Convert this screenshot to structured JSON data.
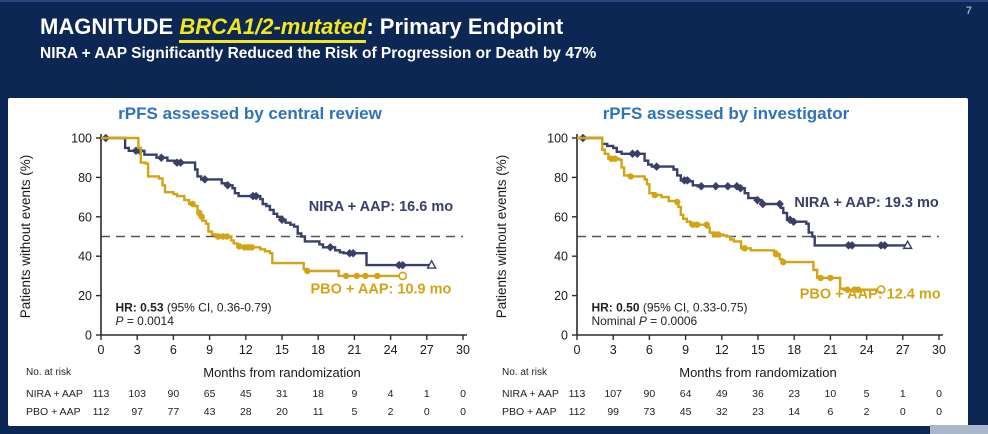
{
  "page_number": "7",
  "header": {
    "title_prefix": "MAGNITUDE ",
    "title_highlight": "BRCA1/2-mutated",
    "title_suffix": ": Primary Endpoint",
    "subtitle": "NIRA + AAP Significantly Reduced the Risk of Progression or Death by 47%"
  },
  "colors": {
    "slide_bg": "#0C2754",
    "highlight_yellow": "#F2E71E",
    "plot_title_blue": "#2E74B5",
    "nira_navy": "#383F68",
    "pbo_gold": "#D2A414",
    "axis": "#2B2B2B",
    "dashed_reference": "#555555"
  },
  "chart_data": [
    {
      "type": "line",
      "variant": "kaplan-meier-step",
      "id": "central-review",
      "title": "rPFS assessed by central review",
      "xlabel": "Months from randomization",
      "ylabel": "Patients without events (%)",
      "xlim": [
        0,
        30
      ],
      "xtick_step": 3,
      "ylim": [
        0,
        100
      ],
      "yticks": [
        0,
        20,
        40,
        60,
        80,
        100
      ],
      "grid": false,
      "reference_line_y": 50,
      "series": [
        {
          "name": "NIRA + AAP",
          "color": "#383F68",
          "median_months": 16.6,
          "annotation": {
            "text": "NIRA + AAP: 16.6 mo",
            "x_mo": 23.2,
            "y_pct": 63
          },
          "censor_marker": "diamond",
          "end_marker": "triangle-open",
          "steps": [
            [
              0,
              100
            ],
            [
              1.8,
              100
            ],
            [
              2.0,
              95
            ],
            [
              2.3,
              93.5
            ],
            [
              3.4,
              93.5
            ],
            [
              3.6,
              91.5
            ],
            [
              4.4,
              91.5
            ],
            [
              4.6,
              90
            ],
            [
              5.3,
              90
            ],
            [
              5.5,
              88.5
            ],
            [
              6.1,
              87.5
            ],
            [
              7.6,
              87.5
            ],
            [
              7.8,
              84
            ],
            [
              8.0,
              80.5
            ],
            [
              8.3,
              79
            ],
            [
              9.8,
              79
            ],
            [
              10.0,
              77
            ],
            [
              10.4,
              76
            ],
            [
              10.9,
              74.5
            ],
            [
              11.1,
              72
            ],
            [
              11.4,
              70.5
            ],
            [
              12.9,
              70.5
            ],
            [
              13.2,
              69
            ],
            [
              13.4,
              66.5
            ],
            [
              13.7,
              65.5
            ],
            [
              14.0,
              63.5
            ],
            [
              14.3,
              61.5
            ],
            [
              14.6,
              60
            ],
            [
              15.0,
              58.5
            ],
            [
              15.3,
              57
            ],
            [
              15.7,
              56
            ],
            [
              16.0,
              55
            ],
            [
              16.3,
              51.5
            ],
            [
              16.6,
              50
            ],
            [
              16.9,
              47.5
            ],
            [
              17.8,
              47.5
            ],
            [
              18.1,
              46
            ],
            [
              18.4,
              44.5
            ],
            [
              19.4,
              43
            ],
            [
              19.8,
              42
            ],
            [
              20.1,
              41.5
            ],
            [
              21.8,
              41.5
            ],
            [
              22.0,
              35.5
            ],
            [
              27.4,
              35.5
            ]
          ],
          "censors_x": [
            0.4,
            2.9,
            3.2,
            5.0,
            6.3,
            6.6,
            8.6,
            10.5,
            12.6,
            12.85,
            15.0,
            19.0,
            20.6,
            20.9,
            24.7,
            25.0
          ]
        },
        {
          "name": "PBO + AAP",
          "color": "#D2A414",
          "median_months": 10.9,
          "annotation": {
            "text": "PBO + AAP: 10.9 mo",
            "x_mo": 23.2,
            "y_pct": 21
          },
          "censor_marker": "circle",
          "end_marker": "circle-open",
          "steps": [
            [
              0,
              100
            ],
            [
              2.9,
              100
            ],
            [
              3.1,
              95
            ],
            [
              3.3,
              87.5
            ],
            [
              3.7,
              87
            ],
            [
              3.9,
              80.5
            ],
            [
              4.8,
              79.5
            ],
            [
              5.1,
              76
            ],
            [
              5.3,
              72.5
            ],
            [
              6.0,
              71.5
            ],
            [
              6.3,
              70.5
            ],
            [
              6.9,
              68.5
            ],
            [
              7.3,
              66.5
            ],
            [
              7.7,
              65.5
            ],
            [
              8.0,
              62
            ],
            [
              8.2,
              60
            ],
            [
              8.4,
              58
            ],
            [
              8.7,
              56.5
            ],
            [
              8.9,
              52.5
            ],
            [
              9.2,
              51
            ],
            [
              9.5,
              50
            ],
            [
              10.6,
              50
            ],
            [
              10.8,
              48
            ],
            [
              11.0,
              46.5
            ],
            [
              11.3,
              45
            ],
            [
              11.6,
              44.5
            ],
            [
              12.9,
              44.5
            ],
            [
              13.2,
              43.5
            ],
            [
              13.6,
              42.5
            ],
            [
              14.0,
              41.5
            ],
            [
              14.2,
              36.5
            ],
            [
              16.5,
              36.5
            ],
            [
              16.8,
              33.5
            ],
            [
              17.1,
              32.5
            ],
            [
              19.5,
              32.5
            ],
            [
              19.7,
              30
            ],
            [
              25.0,
              30
            ]
          ],
          "censors_x": [
            7.6,
            8.15,
            8.35,
            9.7,
            10.1,
            10.45,
            11.45,
            11.9,
            12.2,
            12.5,
            17.1,
            20.3,
            21.2,
            21.9,
            22.9
          ]
        }
      ],
      "stats": {
        "line1_bold": "HR: 0.53",
        "line1_rest": " (95% CI, 0.36-0.79)",
        "line2_pre": "",
        "line2_italic": "P",
        "line2_rest": " = 0.0014"
      },
      "risk_table": {
        "label": "No. at risk",
        "rows": [
          {
            "name": "NIRA + AAP",
            "values": [
              "113",
              "103",
              "90",
              "65",
              "45",
              "31",
              "18",
              "9",
              "4",
              "1",
              "0"
            ]
          },
          {
            "name": "PBO + AAP",
            "values": [
              "112",
              "97",
              "77",
              "43",
              "28",
              "20",
              "11",
              "5",
              "2",
              "0",
              "0"
            ]
          }
        ]
      }
    },
    {
      "type": "line",
      "variant": "kaplan-meier-step",
      "id": "investigator",
      "title": "rPFS assessed by investigator",
      "xlabel": "Months from randomization",
      "ylabel": "Patients without events (%)",
      "xlim": [
        0,
        30
      ],
      "xtick_step": 3,
      "ylim": [
        0,
        100
      ],
      "yticks": [
        0,
        20,
        40,
        60,
        80,
        100
      ],
      "grid": false,
      "reference_line_y": 50,
      "series": [
        {
          "name": "NIRA + AAP",
          "color": "#383F68",
          "median_months": 19.3,
          "annotation": {
            "text": "NIRA + AAP: 19.3 mo",
            "x_mo": 24.0,
            "y_pct": 65
          },
          "censor_marker": "diamond",
          "end_marker": "triangle-open",
          "steps": [
            [
              0,
              100
            ],
            [
              1.9,
              100
            ],
            [
              2.1,
              97
            ],
            [
              2.5,
              96
            ],
            [
              3.0,
              95
            ],
            [
              3.3,
              93
            ],
            [
              3.7,
              92
            ],
            [
              5.4,
              92
            ],
            [
              5.6,
              88.5
            ],
            [
              5.9,
              86.5
            ],
            [
              6.2,
              85.5
            ],
            [
              7.8,
              85.5
            ],
            [
              8.0,
              84
            ],
            [
              8.3,
              81
            ],
            [
              8.6,
              78.5
            ],
            [
              9.3,
              78
            ],
            [
              9.6,
              76
            ],
            [
              10.0,
              75.5
            ],
            [
              13.0,
              75.5
            ],
            [
              13.4,
              74.5
            ],
            [
              13.9,
              72
            ],
            [
              14.2,
              69.5
            ],
            [
              14.9,
              68.5
            ],
            [
              15.3,
              66.5
            ],
            [
              16.6,
              66.5
            ],
            [
              16.9,
              64.5
            ],
            [
              17.1,
              62
            ],
            [
              17.4,
              58.5
            ],
            [
              17.7,
              57.5
            ],
            [
              18.8,
              57.5
            ],
            [
              19.0,
              56.5
            ],
            [
              19.2,
              52
            ],
            [
              19.5,
              50
            ],
            [
              19.7,
              45.5
            ],
            [
              27.4,
              45.5
            ]
          ],
          "censors_x": [
            0.5,
            4.6,
            5.0,
            6.6,
            8.9,
            9.15,
            10.3,
            11.5,
            12.5,
            13.25,
            13.55,
            14.95,
            15.4,
            16.8,
            17.65,
            17.95,
            22.5,
            22.8,
            25.2,
            25.5
          ]
        },
        {
          "name": "PBO + AAP",
          "color": "#D2A414",
          "median_months": 12.4,
          "annotation": {
            "text": "PBO + AAP: 12.4 mo",
            "x_mo": 24.3,
            "y_pct": 18.5
          },
          "censor_marker": "circle",
          "end_marker": "circle-open",
          "steps": [
            [
              0,
              100
            ],
            [
              1.9,
              100
            ],
            [
              2.1,
              94
            ],
            [
              2.3,
              92
            ],
            [
              2.6,
              89.5
            ],
            [
              3.5,
              89
            ],
            [
              3.7,
              85
            ],
            [
              3.9,
              81
            ],
            [
              4.3,
              80.5
            ],
            [
              5.3,
              80.5
            ],
            [
              5.6,
              79
            ],
            [
              5.8,
              76.5
            ],
            [
              6.0,
              72
            ],
            [
              6.4,
              71
            ],
            [
              7.0,
              70
            ],
            [
              7.6,
              68
            ],
            [
              8.2,
              67.5
            ],
            [
              8.4,
              65
            ],
            [
              8.6,
              61
            ],
            [
              8.8,
              59
            ],
            [
              9.1,
              57.5
            ],
            [
              9.4,
              56
            ],
            [
              10.5,
              56
            ],
            [
              10.8,
              54.5
            ],
            [
              11.0,
              52
            ],
            [
              11.3,
              51
            ],
            [
              12.1,
              50.5
            ],
            [
              12.4,
              50
            ],
            [
              12.7,
              48.5
            ],
            [
              13.0,
              47.5
            ],
            [
              13.6,
              44
            ],
            [
              14.4,
              43
            ],
            [
              16.3,
              42.5
            ],
            [
              16.5,
              41
            ],
            [
              16.8,
              38.5
            ],
            [
              17.0,
              37
            ],
            [
              19.4,
              37
            ],
            [
              19.6,
              33
            ],
            [
              19.9,
              29
            ],
            [
              21.6,
              29
            ],
            [
              21.8,
              23.5
            ],
            [
              22.1,
              23
            ],
            [
              25.2,
              23
            ]
          ],
          "censors_x": [
            2.85,
            3.15,
            4.45,
            6.45,
            8.3,
            9.6,
            9.95,
            10.75,
            11.4,
            11.7,
            13.9,
            16.5,
            17.1,
            20.2,
            21.0,
            22.4,
            23.0,
            23.3
          ]
        }
      ],
      "stats": {
        "line1_bold": "HR: 0.50",
        "line1_rest": " (95% CI, 0.33-0.75)",
        "line2_pre": "Nominal ",
        "line2_italic": "P",
        "line2_rest": " = 0.0006"
      },
      "risk_table": {
        "label": "No. at risk",
        "rows": [
          {
            "name": "NIRA + AAP",
            "values": [
              "113",
              "107",
              "90",
              "64",
              "49",
              "36",
              "23",
              "10",
              "5",
              "1",
              "0"
            ]
          },
          {
            "name": "PBO + AAP",
            "values": [
              "112",
              "99",
              "73",
              "45",
              "32",
              "23",
              "14",
              "6",
              "2",
              "0",
              "0"
            ]
          }
        ]
      }
    }
  ]
}
